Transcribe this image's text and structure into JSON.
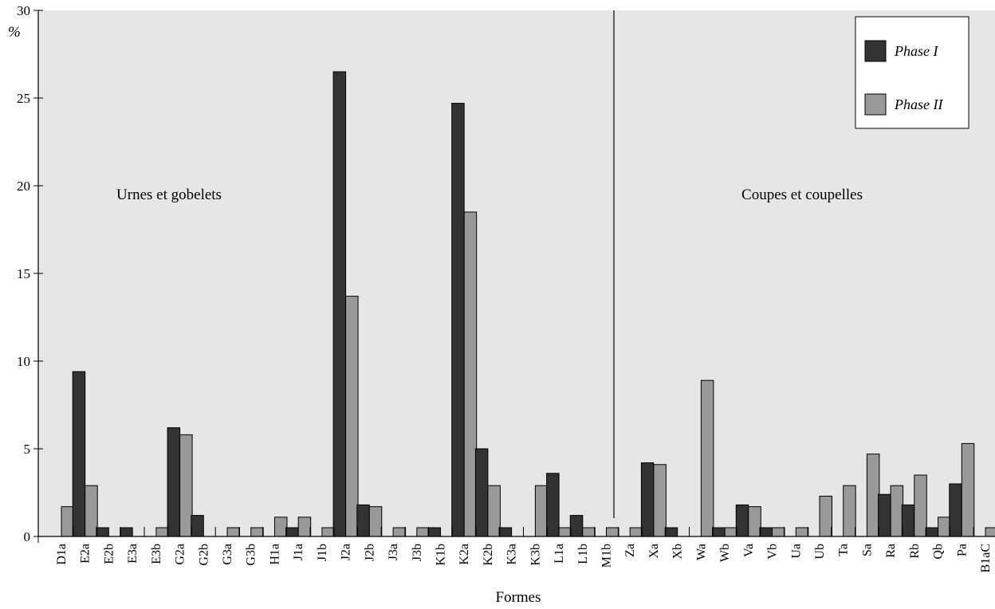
{
  "chart_data": {
    "type": "bar",
    "xlabel": "Formes",
    "ylabel": "%",
    "ylim": [
      0,
      30
    ],
    "yticks": [
      0,
      5,
      10,
      15,
      20,
      25,
      30
    ],
    "grid": false,
    "legend_position": "top-right",
    "colors": {
      "background": "#e6e6e6",
      "phase1": "#333333",
      "phase2": "#999999"
    },
    "categories": [
      "D1a",
      "E2a",
      "E2b",
      "E3a",
      "E3b",
      "G2a",
      "G2b",
      "G3a",
      "G3b",
      "H1a",
      "J1a",
      "J1b",
      "J2a",
      "J2b",
      "J3a",
      "J3b",
      "K1b",
      "K2a",
      "K2b",
      "K3a",
      "K3b",
      "L1a",
      "L1b",
      "M1b",
      "Za",
      "Xa",
      "Xb",
      "Wa",
      "Wb",
      "Va",
      "Vb",
      "Ua",
      "Ub",
      "Ta",
      "Sa",
      "Ra",
      "Rb",
      "Qb",
      "Pa",
      "B1aC"
    ],
    "series": [
      {
        "name": "Phase I",
        "values": [
          0,
          9.4,
          0.5,
          0.5,
          0,
          6.2,
          1.2,
          0,
          0,
          0,
          0.5,
          0,
          26.5,
          1.8,
          0,
          0,
          0.5,
          24.7,
          5.0,
          0.5,
          0,
          3.6,
          1.2,
          0,
          0,
          4.2,
          0.5,
          0,
          0.5,
          1.8,
          0.5,
          0,
          0,
          0,
          0,
          2.4,
          1.8,
          0.5,
          3.0,
          0
        ]
      },
      {
        "name": "Phase II",
        "values": [
          1.7,
          2.9,
          0,
          0,
          0.5,
          5.8,
          0,
          0.5,
          0.5,
          1.1,
          1.1,
          0.5,
          13.7,
          1.7,
          0.5,
          0.5,
          0,
          18.5,
          2.9,
          0,
          2.9,
          0.5,
          0.5,
          0.5,
          0.5,
          4.1,
          0,
          8.9,
          0.5,
          1.7,
          0.5,
          0.5,
          2.3,
          2.9,
          4.7,
          2.9,
          3.5,
          1.1,
          5.3,
          0.5
        ]
      }
    ],
    "annotations": [
      {
        "text": "Urnes et gobelets"
      },
      {
        "text": "Coupes et coupelles"
      }
    ]
  }
}
